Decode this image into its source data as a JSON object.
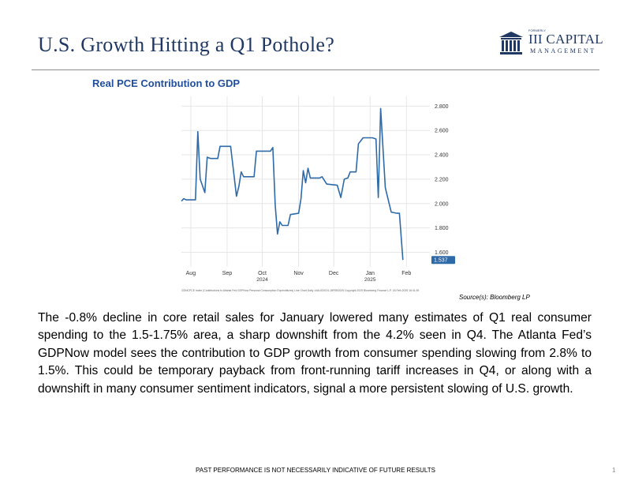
{
  "slide": {
    "title": "U.S. Growth Hitting a Q1 Pothole?",
    "logo_text": "III CAPITAL",
    "logo_subtext": "MANAGEMENT",
    "logo_tiny": "FORMERLY",
    "chart_title": "Real PCE Contribution to GDP",
    "chart_footnote": "GDNCPCE Index (Contributions to Atlanta Fed GDPNow Personal Consumption Expenditures) Line Chart  Daily 14AUG2024-18FEB2025    Copyright 2025 Bloomberg Finance L.P.   18-Feb-2025 16:41:39",
    "source": "Source(s): Bloomberg LP",
    "body": "The -0.8% decline in core retail sales for January lowered many estimates of Q1 real consumer spending to the 1.5-1.75% area, a sharp downshift from the 4.2% seen in Q4. The Atlanta Fed’s GDPNow model sees the contribution to GDP growth from consumer spending slowing from 2.8% to 1.5%. This could be temporary payback from front-running tariff increases in Q4, or along with a downshift in many consumer sentiment indicators, signal a more persistent slowing of U.S. growth.",
    "disclaimer": "PAST PERFORMANCE IS NOT NECESSARILY INDICATIVE OF FUTURE RESULTS",
    "page_number": "1"
  },
  "chart_data": {
    "type": "line",
    "title": "Real PCE Contribution to GDP",
    "x_ticks": [
      {
        "label": "Aug",
        "date": "2024-08-01"
      },
      {
        "label": "Sep",
        "date": "2024-09-01"
      },
      {
        "label": "Oct",
        "date": "2024-10-01"
      },
      {
        "label": "Nov",
        "date": "2024-11-01"
      },
      {
        "label": "Dec",
        "date": "2024-12-01"
      },
      {
        "label": "Jan",
        "date": "2025-01-01"
      },
      {
        "label": "Feb",
        "date": "2025-02-01"
      }
    ],
    "year_labels": [
      {
        "label": "2024",
        "date": "2024-10-01"
      },
      {
        "label": "2025",
        "date": "2025-01-01"
      }
    ],
    "xlim": [
      "2024-07-24",
      "2025-02-21"
    ],
    "ylim": [
      1.48,
      2.88
    ],
    "y_ticks": [
      "1.600",
      "1.800",
      "2.000",
      "2.200",
      "2.400",
      "2.600",
      "2.800"
    ],
    "last_value_label": "1.537",
    "grid": true,
    "series": [
      {
        "color": "#2e6aa8",
        "points": [
          [
            "2024-07-24",
            2.02
          ],
          [
            "2024-07-26",
            2.04
          ],
          [
            "2024-07-28",
            2.03
          ],
          [
            "2024-08-05",
            2.03
          ],
          [
            "2024-08-07",
            2.59
          ],
          [
            "2024-08-09",
            2.2
          ],
          [
            "2024-08-13",
            2.09
          ],
          [
            "2024-08-15",
            2.38
          ],
          [
            "2024-08-18",
            2.37
          ],
          [
            "2024-08-24",
            2.37
          ],
          [
            "2024-08-26",
            2.47
          ],
          [
            "2024-09-04",
            2.47
          ],
          [
            "2024-09-09",
            2.06
          ],
          [
            "2024-09-11",
            2.14
          ],
          [
            "2024-09-13",
            2.26
          ],
          [
            "2024-09-15",
            2.22
          ],
          [
            "2024-09-24",
            2.22
          ],
          [
            "2024-09-26",
            2.43
          ],
          [
            "2024-10-08",
            2.43
          ],
          [
            "2024-10-10",
            2.46
          ],
          [
            "2024-10-12",
            1.99
          ],
          [
            "2024-10-14",
            1.75
          ],
          [
            "2024-10-16",
            1.85
          ],
          [
            "2024-10-18",
            1.82
          ],
          [
            "2024-10-23",
            1.82
          ],
          [
            "2024-10-25",
            1.91
          ],
          [
            "2024-11-01",
            1.92
          ],
          [
            "2024-11-03",
            2.04
          ],
          [
            "2024-11-05",
            2.27
          ],
          [
            "2024-11-07",
            2.17
          ],
          [
            "2024-11-09",
            2.29
          ],
          [
            "2024-11-11",
            2.21
          ],
          [
            "2024-11-19",
            2.21
          ],
          [
            "2024-11-21",
            2.22
          ],
          [
            "2024-11-25",
            2.16
          ],
          [
            "2024-12-04",
            2.15
          ],
          [
            "2024-12-07",
            2.05
          ],
          [
            "2024-12-10",
            2.2
          ],
          [
            "2024-12-13",
            2.21
          ],
          [
            "2024-12-15",
            2.26
          ],
          [
            "2024-12-20",
            2.26
          ],
          [
            "2024-12-22",
            2.49
          ],
          [
            "2024-12-26",
            2.54
          ],
          [
            "2025-01-03",
            2.54
          ],
          [
            "2025-01-06",
            2.53
          ],
          [
            "2025-01-08",
            2.05
          ],
          [
            "2025-01-10",
            2.78
          ],
          [
            "2025-01-14",
            2.13
          ],
          [
            "2025-01-19",
            1.93
          ],
          [
            "2025-01-24",
            1.92
          ],
          [
            "2025-01-26",
            1.92
          ],
          [
            "2025-01-29",
            1.537
          ]
        ]
      }
    ]
  }
}
